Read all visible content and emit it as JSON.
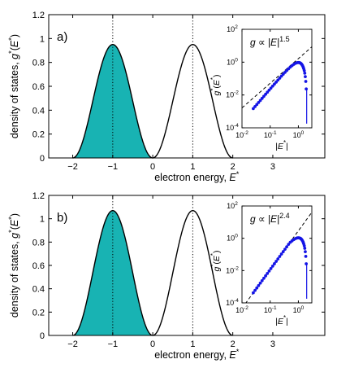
{
  "chart_data": [
    {
      "type": "area",
      "panel_label": "a)",
      "xlabel": "electron energy, E*",
      "ylabel": "density of states, g*(E*)",
      "xlim": [
        -2.6,
        4.3
      ],
      "ylim": [
        0,
        1.2
      ],
      "xticks": [
        -2,
        -1,
        0,
        1,
        2,
        3
      ],
      "yticks": [
        0,
        0.2,
        0.4,
        0.6,
        0.8,
        1,
        1.2
      ],
      "series": [
        {
          "shape": "two-band",
          "band_centers": [
            -1,
            1
          ],
          "peak": 0.95,
          "support": [
            -2,
            2
          ],
          "filled_band": "lower",
          "fill_color": "#18b3b3",
          "line_color": "#000000"
        }
      ],
      "reference_lines": [
        {
          "x": -1,
          "style": "dotted"
        },
        {
          "x": 1,
          "style": "dotted"
        }
      ],
      "inset": {
        "xlabel": "|E*|",
        "ylabel": "g*(E*)",
        "xscale": "log",
        "yscale": "log",
        "xlim": [
          0.01,
          3
        ],
        "ylim": [
          0.0001,
          100
        ],
        "xticks": [
          "10^-2",
          "10^-1",
          "10^0"
        ],
        "yticks": [
          "10^-4",
          "10^-2",
          "10^0",
          "10^2"
        ],
        "annotation_prefix": "g ∝ |E|",
        "exponent": "1.5",
        "fit_slope": 1.5,
        "marker_color": "#1414e6",
        "fit_style": "dashed"
      }
    },
    {
      "type": "area",
      "panel_label": "b)",
      "xlabel": "electron energy, E*",
      "ylabel": "density of states, g*(E*)",
      "xlim": [
        -2.6,
        4.3
      ],
      "ylim": [
        0,
        1.2
      ],
      "xticks": [
        -2,
        -1,
        0,
        1,
        2,
        3
      ],
      "yticks": [
        0,
        0.2,
        0.4,
        0.6,
        0.8,
        1,
        1.2
      ],
      "series": [
        {
          "shape": "two-band",
          "band_centers": [
            -1,
            1
          ],
          "peak": 1.07,
          "support": [
            -2,
            2
          ],
          "filled_band": "lower",
          "fill_color": "#18b3b3",
          "line_color": "#000000"
        }
      ],
      "reference_lines": [
        {
          "x": -1,
          "style": "dotted"
        },
        {
          "x": 1,
          "style": "dotted"
        }
      ],
      "inset": {
        "xlabel": "|E*|",
        "ylabel": "g*(E*)",
        "xscale": "log",
        "yscale": "log",
        "xlim": [
          0.01,
          3
        ],
        "ylim": [
          0.0001,
          100
        ],
        "xticks": [
          "10^-2",
          "10^-1",
          "10^0"
        ],
        "yticks": [
          "10^-4",
          "10^-2",
          "10^0",
          "10^2"
        ],
        "annotation_prefix": "g ∝ |E|",
        "exponent": "2.4",
        "fit_slope": 2.4,
        "marker_color": "#1414e6",
        "fit_style": "dashed"
      }
    }
  ]
}
